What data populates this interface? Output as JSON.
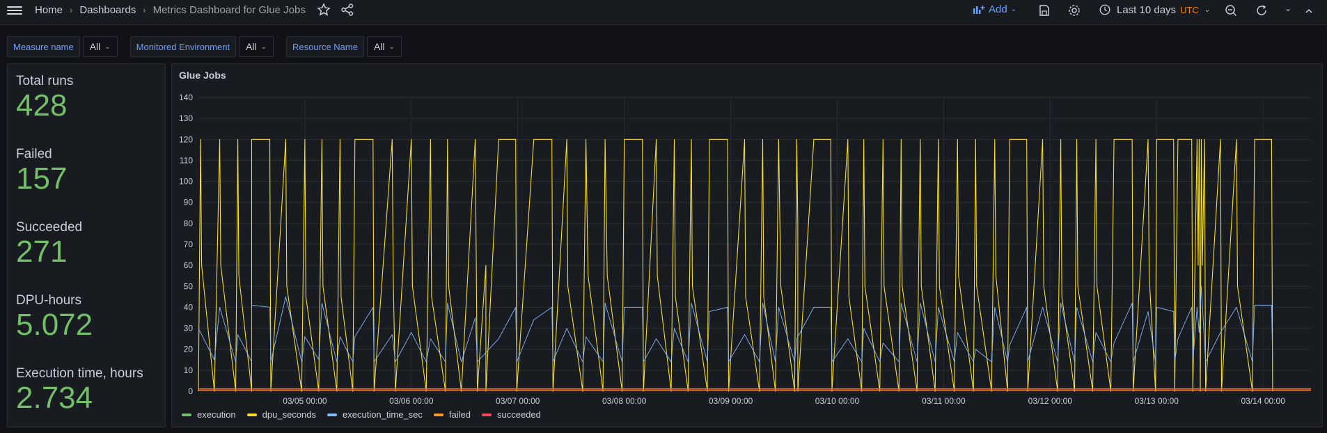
{
  "breadcrumb": {
    "home": "Home",
    "dashboards": "Dashboards",
    "current": "Metrics Dashboard for Glue Jobs"
  },
  "toolbar": {
    "add_label": "Add",
    "time_range": "Last 10 days",
    "timezone": "UTC"
  },
  "variables": [
    {
      "label": "Measure name",
      "value": "All"
    },
    {
      "label": "Monitored Environment",
      "value": "All"
    },
    {
      "label": "Resource Name",
      "value": "All"
    }
  ],
  "stats": [
    {
      "label": "Total runs",
      "value": "428"
    },
    {
      "label": "Failed",
      "value": "157"
    },
    {
      "label": "Succeeded",
      "value": "271"
    },
    {
      "label": "DPU-hours",
      "value": "5.072"
    },
    {
      "label": "Execution time, hours",
      "value": "2.734"
    }
  ],
  "colors": {
    "stat_value": "#73bf69",
    "accent": "#6e9fff",
    "utc": "#ff7f00"
  },
  "chart_data": {
    "type": "line",
    "title": "Glue Jobs",
    "ylim": [
      0,
      140
    ],
    "yticks": [
      "0",
      "10",
      "20",
      "30",
      "40",
      "50",
      "60",
      "70",
      "80",
      "90",
      "100",
      "110",
      "120",
      "130",
      "140"
    ],
    "xticks": [
      "03/05 00:00",
      "03/06 00:00",
      "03/07 00:00",
      "03/08 00:00",
      "03/09 00:00",
      "03/10 00:00",
      "03/11 00:00",
      "03/12 00:00",
      "03/13 00:00",
      "03/14 00:00"
    ],
    "x_day_range": [
      4.0,
      14.45
    ],
    "grid": true,
    "legend_position": "bottom-left",
    "series": [
      {
        "name": "execution",
        "color": "#73bf69",
        "points": [
          [
            4.0,
            1
          ],
          [
            14.45,
            1
          ]
        ]
      },
      {
        "name": "dpu_seconds",
        "color": "#fade2a",
        "points": [
          [
            4.0,
            0
          ],
          [
            4.02,
            120
          ],
          [
            4.03,
            60
          ],
          [
            4.15,
            0
          ],
          [
            4.2,
            120
          ],
          [
            4.21,
            60
          ],
          [
            4.35,
            0
          ],
          [
            4.37,
            120
          ],
          [
            4.38,
            55
          ],
          [
            4.5,
            0
          ],
          [
            4.5,
            120
          ],
          [
            4.67,
            120
          ],
          [
            4.68,
            0
          ],
          [
            4.82,
            120
          ],
          [
            4.83,
            50
          ],
          [
            4.97,
            0
          ],
          [
            5.0,
            120
          ],
          [
            5.01,
            45
          ],
          [
            5.13,
            0
          ],
          [
            5.16,
            120
          ],
          [
            5.17,
            50
          ],
          [
            5.3,
            0
          ],
          [
            5.33,
            120
          ],
          [
            5.34,
            45
          ],
          [
            5.45,
            0
          ],
          [
            5.47,
            120
          ],
          [
            5.64,
            120
          ],
          [
            5.65,
            0
          ],
          [
            5.82,
            120
          ],
          [
            5.83,
            55
          ],
          [
            5.85,
            0
          ],
          [
            6.0,
            120
          ],
          [
            6.01,
            50
          ],
          [
            6.14,
            0
          ],
          [
            6.18,
            120
          ],
          [
            6.19,
            45
          ],
          [
            6.32,
            0
          ],
          [
            6.34,
            120
          ],
          [
            6.35,
            50
          ],
          [
            6.47,
            0
          ],
          [
            6.6,
            120
          ],
          [
            6.62,
            0
          ],
          [
            6.7,
            60
          ],
          [
            6.7,
            0
          ],
          [
            6.82,
            120
          ],
          [
            6.98,
            120
          ],
          [
            6.99,
            0
          ],
          [
            7.15,
            120
          ],
          [
            7.32,
            120
          ],
          [
            7.33,
            0
          ],
          [
            7.46,
            120
          ],
          [
            7.47,
            50
          ],
          [
            7.61,
            0
          ],
          [
            7.64,
            120
          ],
          [
            7.66,
            55
          ],
          [
            7.8,
            0
          ],
          [
            7.82,
            120
          ],
          [
            7.84,
            55
          ],
          [
            7.98,
            0
          ],
          [
            8.0,
            120
          ],
          [
            8.17,
            120
          ],
          [
            8.18,
            0
          ],
          [
            8.3,
            120
          ],
          [
            8.31,
            55
          ],
          [
            8.44,
            0
          ],
          [
            8.47,
            120
          ],
          [
            8.48,
            45
          ],
          [
            8.6,
            0
          ],
          [
            8.63,
            120
          ],
          [
            8.64,
            50
          ],
          [
            8.78,
            0
          ],
          [
            8.8,
            120
          ],
          [
            8.97,
            120
          ],
          [
            8.98,
            0
          ],
          [
            9.13,
            120
          ],
          [
            9.14,
            45
          ],
          [
            9.27,
            0
          ],
          [
            9.3,
            120
          ],
          [
            9.31,
            45
          ],
          [
            9.42,
            0
          ],
          [
            9.45,
            120
          ],
          [
            9.47,
            50
          ],
          [
            9.6,
            0
          ],
          [
            9.62,
            120
          ],
          [
            9.63,
            80
          ],
          [
            9.63,
            0
          ],
          [
            9.78,
            120
          ],
          [
            9.94,
            120
          ],
          [
            9.95,
            0
          ],
          [
            10.1,
            120
          ],
          [
            10.11,
            45
          ],
          [
            10.23,
            0
          ],
          [
            10.25,
            120
          ],
          [
            10.26,
            50
          ],
          [
            10.4,
            0
          ],
          [
            10.43,
            120
          ],
          [
            10.44,
            50
          ],
          [
            10.58,
            0
          ],
          [
            10.6,
            120
          ],
          [
            10.61,
            50
          ],
          [
            10.75,
            0
          ],
          [
            10.78,
            120
          ],
          [
            10.79,
            50
          ],
          [
            10.92,
            0
          ],
          [
            10.95,
            120
          ],
          [
            10.96,
            50
          ],
          [
            11.1,
            0
          ],
          [
            11.13,
            120
          ],
          [
            11.14,
            55
          ],
          [
            11.28,
            0
          ],
          [
            11.3,
            120
          ],
          [
            11.31,
            50
          ],
          [
            11.45,
            0
          ],
          [
            11.48,
            120
          ],
          [
            11.49,
            55
          ],
          [
            11.6,
            0
          ],
          [
            11.62,
            120
          ],
          [
            11.78,
            120
          ],
          [
            11.79,
            0
          ],
          [
            11.93,
            120
          ],
          [
            11.94,
            50
          ],
          [
            12.07,
            0
          ],
          [
            12.1,
            120
          ],
          [
            12.11,
            45
          ],
          [
            12.23,
            0
          ],
          [
            12.25,
            120
          ],
          [
            12.26,
            50
          ],
          [
            12.4,
            0
          ],
          [
            12.43,
            120
          ],
          [
            12.44,
            50
          ],
          [
            12.57,
            0
          ],
          [
            12.6,
            120
          ],
          [
            12.77,
            120
          ],
          [
            12.78,
            0
          ],
          [
            12.92,
            120
          ],
          [
            12.93,
            55
          ],
          [
            12.99,
            0
          ],
          [
            13.0,
            120
          ],
          [
            13.16,
            120
          ],
          [
            13.17,
            0
          ],
          [
            13.2,
            120
          ],
          [
            13.33,
            120
          ],
          [
            13.34,
            0
          ],
          [
            13.38,
            120
          ],
          [
            13.39,
            60
          ],
          [
            13.4,
            120
          ],
          [
            13.41,
            0
          ],
          [
            13.42,
            120
          ],
          [
            13.43,
            60
          ],
          [
            13.45,
            120
          ],
          [
            13.46,
            0
          ],
          [
            13.6,
            120
          ],
          [
            13.61,
            0
          ],
          [
            13.75,
            120
          ],
          [
            13.76,
            50
          ],
          [
            13.9,
            0
          ],
          [
            13.92,
            120
          ],
          [
            14.08,
            120
          ],
          [
            14.09,
            0
          ]
        ]
      },
      {
        "name": "execution_time_sec",
        "color": "#8ab8ff",
        "points": [
          [
            4.0,
            30
          ],
          [
            4.15,
            15
          ],
          [
            4.2,
            40
          ],
          [
            4.35,
            14
          ],
          [
            4.37,
            27
          ],
          [
            4.5,
            14
          ],
          [
            4.5,
            41
          ],
          [
            4.67,
            40
          ],
          [
            4.68,
            14
          ],
          [
            4.82,
            45
          ],
          [
            4.97,
            14
          ],
          [
            5.0,
            26
          ],
          [
            5.13,
            15
          ],
          [
            5.16,
            42
          ],
          [
            5.3,
            14
          ],
          [
            5.33,
            26
          ],
          [
            5.45,
            14
          ],
          [
            5.47,
            26
          ],
          [
            5.64,
            40
          ],
          [
            5.65,
            14
          ],
          [
            5.82,
            27
          ],
          [
            5.85,
            14
          ],
          [
            6.0,
            28
          ],
          [
            6.14,
            14
          ],
          [
            6.18,
            25
          ],
          [
            6.32,
            14
          ],
          [
            6.34,
            42
          ],
          [
            6.47,
            14
          ],
          [
            6.6,
            35
          ],
          [
            6.62,
            14
          ],
          [
            6.82,
            25
          ],
          [
            6.98,
            40
          ],
          [
            6.99,
            14
          ],
          [
            7.15,
            34
          ],
          [
            7.32,
            40
          ],
          [
            7.33,
            14
          ],
          [
            7.46,
            30
          ],
          [
            7.61,
            14
          ],
          [
            7.64,
            26
          ],
          [
            7.8,
            14
          ],
          [
            7.82,
            42
          ],
          [
            7.98,
            14
          ],
          [
            8.0,
            40
          ],
          [
            8.17,
            40
          ],
          [
            8.18,
            14
          ],
          [
            8.3,
            25
          ],
          [
            8.44,
            14
          ],
          [
            8.47,
            30
          ],
          [
            8.6,
            14
          ],
          [
            8.63,
            42
          ],
          [
            8.78,
            14
          ],
          [
            8.8,
            38
          ],
          [
            8.97,
            40
          ],
          [
            8.98,
            14
          ],
          [
            9.13,
            27
          ],
          [
            9.27,
            14
          ],
          [
            9.3,
            42
          ],
          [
            9.42,
            14
          ],
          [
            9.45,
            40
          ],
          [
            9.6,
            14
          ],
          [
            9.62,
            25
          ],
          [
            9.78,
            40
          ],
          [
            9.94,
            40
          ],
          [
            9.95,
            14
          ],
          [
            10.1,
            25
          ],
          [
            10.23,
            14
          ],
          [
            10.25,
            30
          ],
          [
            10.4,
            14
          ],
          [
            10.43,
            23
          ],
          [
            10.58,
            14
          ],
          [
            10.6,
            42
          ],
          [
            10.75,
            14
          ],
          [
            10.78,
            42
          ],
          [
            10.92,
            14
          ],
          [
            10.95,
            40
          ],
          [
            11.1,
            14
          ],
          [
            11.13,
            28
          ],
          [
            11.28,
            14
          ],
          [
            11.3,
            20
          ],
          [
            11.45,
            14
          ],
          [
            11.48,
            40
          ],
          [
            11.6,
            14
          ],
          [
            11.62,
            22
          ],
          [
            11.78,
            40
          ],
          [
            11.79,
            14
          ],
          [
            11.93,
            40
          ],
          [
            12.07,
            14
          ],
          [
            12.1,
            42
          ],
          [
            12.23,
            14
          ],
          [
            12.25,
            40
          ],
          [
            12.4,
            14
          ],
          [
            12.43,
            28
          ],
          [
            12.57,
            14
          ],
          [
            12.6,
            23
          ],
          [
            12.77,
            42
          ],
          [
            12.78,
            14
          ],
          [
            12.92,
            38
          ],
          [
            12.99,
            14
          ],
          [
            13.0,
            40
          ],
          [
            13.16,
            38
          ],
          [
            13.17,
            14
          ],
          [
            13.2,
            25
          ],
          [
            13.33,
            40
          ],
          [
            13.34,
            14
          ],
          [
            13.38,
            40
          ],
          [
            13.4,
            28
          ],
          [
            13.42,
            50
          ],
          [
            13.46,
            14
          ],
          [
            13.6,
            28
          ],
          [
            13.75,
            40
          ],
          [
            13.9,
            14
          ],
          [
            13.92,
            41
          ],
          [
            14.08,
            41
          ],
          [
            14.09,
            14
          ]
        ]
      },
      {
        "name": "failed",
        "color": "#ff9830",
        "points": [
          [
            4.0,
            0.5
          ],
          [
            14.45,
            0.5
          ]
        ]
      },
      {
        "name": "succeeded",
        "color": "#f2495c",
        "points": [
          [
            4.0,
            1.3
          ],
          [
            14.45,
            1.3
          ]
        ]
      }
    ]
  }
}
